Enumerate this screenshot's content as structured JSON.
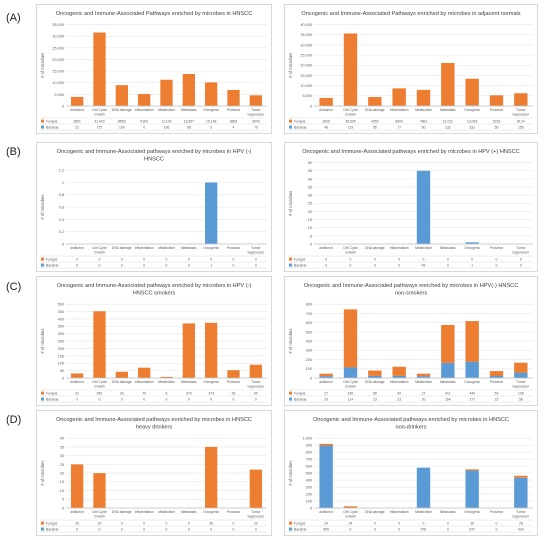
{
  "panel_labels": [
    "(A)",
    "(B)",
    "(C)",
    "(D)"
  ],
  "legend_labels": [
    "Fungus",
    "Bacteria"
  ],
  "colors": {
    "fungus": "#ED7D31",
    "bacteria": "#5B9BD5",
    "grid": "#e6e6e6",
    "axis": "#bfbfbf"
  },
  "chart_data": [
    {
      "type": "bar",
      "stacked": true,
      "title": "Oncogenic and Immune-Associated Pathways enriched by microbes in HNSCC",
      "ylabel": "# of microbes",
      "ylim": [
        0,
        35000
      ],
      "yticks": [
        0,
        5000,
        10000,
        15000,
        20000,
        25000,
        30000,
        35000
      ],
      "categories": [
        "Antitumor",
        "Cell Cycle Growth",
        "DNA damage",
        "Inflammation",
        "Metabolism",
        "Metastasis",
        "Oncogenic",
        "Protumor",
        "Tumor Suppressor"
      ],
      "series": [
        {
          "name": "Fungus",
          "values": [
            3891,
            31420,
            8853,
            5163,
            11102,
            13657,
            10148,
            6892,
            4543
          ]
        },
        {
          "name": "Bacteria",
          "values": [
            22,
            175,
            109,
            0,
            196,
            98,
            5,
            4,
            70
          ]
        }
      ],
      "table": [
        {
          "name": "Fungus",
          "cells": [
            "3891",
            "31,420",
            "8853",
            "5163",
            "11,102",
            "13,657",
            "10,148",
            "6892",
            "4543"
          ]
        },
        {
          "name": "Bacteria",
          "cells": [
            "22",
            "175",
            "109",
            "0",
            "196",
            "98",
            "5",
            "4",
            "70"
          ]
        }
      ]
    },
    {
      "type": "bar",
      "stacked": true,
      "title": "Oncogenic and Immune-Associated Pathways enriched by microbes in adjacent normals",
      "ylabel": "# of microbes",
      "ylim": [
        0,
        40000
      ],
      "yticks": [
        0,
        5000,
        10000,
        15000,
        20000,
        25000,
        30000,
        35000,
        40000
      ],
      "categories": [
        "Antitumor",
        "Cell Cycle Growth",
        "DNA damage",
        "Inflammation",
        "Metabolism",
        "Metastasis",
        "Oncogenic",
        "Protumor",
        "Tumor Suppressor"
      ],
      "series": [
        {
          "name": "Fungus",
          "values": [
            3925,
            35505,
            4350,
            8600,
            7861,
            21011,
            13063,
            5218,
            6124
          ]
        },
        {
          "name": "Bacteria",
          "values": [
            48,
            119,
            56,
            77,
            50,
            132,
            331,
            55,
            156
          ]
        }
      ],
      "table": [
        {
          "name": "Fungus",
          "cells": [
            "3925",
            "35,505",
            "4350",
            "8600",
            "7861",
            "21,011",
            "13,063",
            "5218",
            "6124"
          ]
        },
        {
          "name": "Bacteria",
          "cells": [
            "48",
            "119",
            "56",
            "77",
            "50",
            "132",
            "331",
            "55",
            "156"
          ]
        }
      ]
    },
    {
      "type": "bar",
      "stacked": true,
      "title": "Oncogenic and Immune-Associated pathways enriched by microbes in HPV (-) HNSCC",
      "ylabel": "# of microbes",
      "ylim": [
        0,
        1.2
      ],
      "yticks": [
        0,
        0.2,
        0.4,
        0.6,
        0.8,
        1,
        1.2
      ],
      "categories": [
        "antitumor",
        "Cell Cycle Growth",
        "DNA damage",
        "Inflammation",
        "Metabolism",
        "Metastasis",
        "Oncogenic",
        "Protumor",
        "Tumor Suppressor"
      ],
      "series": [
        {
          "name": "Fungus",
          "values": [
            0,
            0,
            0,
            0,
            0,
            0,
            0,
            0,
            0
          ]
        },
        {
          "name": "Bacteria",
          "values": [
            0,
            0,
            0,
            0,
            0,
            0,
            1,
            0,
            0
          ]
        }
      ],
      "table": [
        {
          "name": "Fungus",
          "cells": [
            "0",
            "0",
            "0",
            "0",
            "0",
            "0",
            "0",
            "0",
            "0"
          ]
        },
        {
          "name": "Bacteria",
          "cells": [
            "0",
            "0",
            "0",
            "0",
            "0",
            "0",
            "1",
            "0",
            "0"
          ]
        }
      ]
    },
    {
      "type": "bar",
      "stacked": true,
      "title": "Oncogenic and Immune-Associated pathways enriched by microbes in HPV (+) HNSCC",
      "ylabel": "# of microbes",
      "ylim": [
        0,
        50
      ],
      "yticks": [
        0,
        5,
        10,
        15,
        20,
        25,
        30,
        35,
        40,
        45,
        50
      ],
      "categories": [
        "antitumor",
        "Cell Cycle Growth",
        "DNA damage",
        "Inflammation",
        "Metabolism",
        "Metastasis",
        "Oncogenic",
        "Protumor",
        "Tumor Suppressor"
      ],
      "series": [
        {
          "name": "Fungus",
          "values": [
            0,
            0,
            0,
            0,
            0,
            0,
            0,
            0,
            0
          ]
        },
        {
          "name": "Bacteria",
          "values": [
            0,
            0,
            0,
            0,
            45,
            0,
            1,
            0,
            0
          ]
        }
      ],
      "table": [
        {
          "name": "Fungus",
          "cells": [
            "0",
            "0",
            "0",
            "0",
            "0",
            "0",
            "0",
            "0",
            "0"
          ]
        },
        {
          "name": "Bacteria",
          "cells": [
            "0",
            "0",
            "0",
            "0",
            "45",
            "0",
            "1",
            "0",
            "0"
          ]
        }
      ]
    },
    {
      "type": "bar",
      "stacked": true,
      "title": "Oncogenic and Immune-Associated pathways enriched by microbes in HPV (-) HNSCC smokers",
      "ylabel": "# of microbes",
      "ylim": [
        0,
        500
      ],
      "yticks": [
        0,
        50,
        100,
        150,
        200,
        250,
        300,
        350,
        400,
        450,
        500
      ],
      "categories": [
        "antitumor",
        "Cell Cycle Growth",
        "DNA damage",
        "Inflammation",
        "Metabolism",
        "Metastasis",
        "Oncogenic",
        "Protumor",
        "Tumor Suppressor"
      ],
      "series": [
        {
          "name": "Fungus",
          "values": [
            31,
            452,
            42,
            70,
            8,
            370,
            374,
            53,
            90
          ]
        },
        {
          "name": "Bacteria",
          "values": [
            0,
            0,
            0,
            0,
            0,
            0,
            0,
            0,
            0
          ]
        }
      ],
      "table": [
        {
          "name": "Fungus",
          "cells": [
            "31",
            "452",
            "42",
            "70",
            "8",
            "370",
            "374",
            "53",
            "90"
          ]
        },
        {
          "name": "Bacteria",
          "cells": [
            "0",
            "0",
            "0",
            "0",
            "0",
            "0",
            "0",
            "0",
            "0"
          ]
        }
      ]
    },
    {
      "type": "bar",
      "stacked": true,
      "title": "Oncogenic and Immune-Associated pathways enriched by microbes in HPV(-) HNSCC non-smokers",
      "ylabel": "# of microbes",
      "ylim": [
        0,
        800
      ],
      "yticks": [
        0,
        100,
        200,
        300,
        400,
        500,
        600,
        700,
        800
      ],
      "categories": [
        "antitumor",
        "Cell Cycle Growth",
        "DNA damage",
        "Inflammation",
        "Metabolism",
        "Metastasis",
        "Oncogenic",
        "Protumor",
        "Tumor Suppressor"
      ],
      "series": [
        {
          "name": "Fungus",
          "values": [
            27,
            630,
            58,
            99,
            27,
            411,
            440,
            53,
            108
          ]
        },
        {
          "name": "Bacteria",
          "values": [
            20,
            114,
            23,
            23,
            20,
            164,
            177,
            22,
            58
          ]
        }
      ],
      "table": [
        {
          "name": "Fungus",
          "cells": [
            "27",
            "630",
            "58",
            "99",
            "27",
            "411",
            "440",
            "53",
            "108"
          ]
        },
        {
          "name": "Bacteria",
          "cells": [
            "20",
            "114",
            "23",
            "23",
            "20",
            "164",
            "177",
            "22",
            "58"
          ]
        }
      ]
    },
    {
      "type": "bar",
      "stacked": true,
      "title": "Oncogenic and Immune-Associated pathways enriched by microbes in HNSCC heavy drinkers",
      "ylabel": "# of microbes",
      "ylim": [
        0,
        40
      ],
      "yticks": [
        0,
        5,
        10,
        15,
        20,
        25,
        30,
        35,
        40
      ],
      "categories": [
        "antitumor",
        "Cell Cycle Growth",
        "DNA damage",
        "Inflammation",
        "Metabolism",
        "Metastasis",
        "Oncogenic",
        "Protumor",
        "Tumor Suppressor"
      ],
      "series": [
        {
          "name": "Fungus",
          "values": [
            25,
            20,
            0,
            0,
            0,
            0,
            35,
            0,
            22
          ]
        },
        {
          "name": "Bacteria",
          "values": [
            0,
            0,
            0,
            0,
            0,
            0,
            0,
            0,
            0
          ]
        }
      ],
      "table": [
        {
          "name": "Fungus",
          "cells": [
            "25",
            "20",
            "0",
            "0",
            "0",
            "0",
            "35",
            "0",
            "22"
          ]
        },
        {
          "name": "Bacteria",
          "cells": [
            "0",
            "0",
            "0",
            "0",
            "0",
            "0",
            "0",
            "0",
            "0"
          ]
        }
      ]
    },
    {
      "type": "bar",
      "stacked": true,
      "title": "Oncogenic and Immune-Associated pathways enriched by microbes in HNSCC non-drinkers",
      "ylabel": "# of microbes",
      "ylim": [
        0,
        1000
      ],
      "yticks": [
        0,
        100,
        200,
        300,
        400,
        500,
        600,
        700,
        800,
        900,
        1000
      ],
      "categories": [
        "antitumor",
        "Cell Cycle Growth",
        "DNA damage",
        "Inflammation",
        "Metabolism",
        "Metastasis",
        "Oncogenic",
        "Protumor",
        "Tumor Suppressor"
      ],
      "series": [
        {
          "name": "Fungus",
          "values": [
            24,
            24,
            0,
            0,
            0,
            0,
            16,
            0,
            28
          ]
        },
        {
          "name": "Bacteria",
          "values": [
            895,
            0,
            0,
            0,
            578,
            0,
            537,
            0,
            434
          ]
        }
      ],
      "table": [
        {
          "name": "Fungus",
          "cells": [
            "24",
            "24",
            "0",
            "0",
            "0",
            "0",
            "16",
            "0",
            "28"
          ]
        },
        {
          "name": "Bacteria",
          "cells": [
            "895",
            "0",
            "0",
            "0",
            "578",
            "0",
            "537",
            "0",
            "434"
          ]
        }
      ]
    }
  ]
}
